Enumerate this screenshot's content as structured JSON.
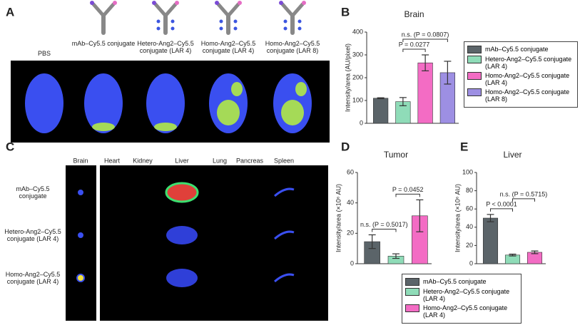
{
  "panel_letters": [
    "A",
    "B",
    "C",
    "D",
    "E"
  ],
  "panel_a": {
    "labels": [
      "PBS",
      "mAb–Cy5.5 conjugate",
      "Hetero-Ang2–Cy5.5 conjugate (LAR 4)",
      "Homo-Ang2–Cy5.5 conjugate (LAR 4)",
      "Homo-Ang2–Cy5.5 conjugate (LAR 8)"
    ]
  },
  "panel_c": {
    "columns": [
      "Brain",
      "Heart",
      "Kidney",
      "Liver",
      "Lung",
      "Pancreas",
      "Spleen"
    ],
    "rows": [
      "mAb–Cy5.5 conjugate",
      "Hetero-Ang2–Cy5.5 conjugate (LAR 4)",
      "Homo-Ang2–Cy5.5 conjugate (LAR 4)"
    ]
  },
  "chart_data": [
    {
      "type": "bar",
      "title": "Brain",
      "y_label": "Intensity/area (AU/pixel)",
      "ylim": [
        0,
        400
      ],
      "yticks": [
        0,
        100,
        200,
        300,
        400
      ],
      "series": [
        {
          "name": "mAb–Cy5.5 conjugate",
          "color": "#5b6469",
          "values": [
            110
          ],
          "errors": [
            2
          ]
        },
        {
          "name": "Hetero-Ang2–Cy5.5 conjugate (LAR 4)",
          "color": "#8fdcb8",
          "values": [
            95
          ],
          "errors": [
            18
          ]
        },
        {
          "name": "Homo-Ang2–Cy5.5 conjugate (LAR 4)",
          "color": "#f36cc4",
          "values": [
            265
          ],
          "errors": [
            35
          ]
        },
        {
          "name": "Homo-Ang2–Cy5.5 conjugate (LAR 8)",
          "color": "#9d8fe3",
          "values": [
            222
          ],
          "errors": [
            50
          ]
        }
      ],
      "annotations": [
        {
          "text": "P = 0.0277",
          "bars": [
            1,
            2
          ]
        },
        {
          "text": "n.s. (P = 0.0807)",
          "bars": [
            1,
            3
          ]
        }
      ]
    },
    {
      "type": "bar",
      "title": "Tumor",
      "y_label": "Intensity/area (×10⁶ AU)",
      "ylim": [
        0,
        60
      ],
      "yticks": [
        0,
        20,
        40,
        60
      ],
      "series": [
        {
          "name": "mAb–Cy5.5 conjugate",
          "color": "#5b6469",
          "values": [
            14.5
          ],
          "errors": [
            4.5
          ]
        },
        {
          "name": "Hetero-Ang2–Cy5.5 conjugate (LAR 4)",
          "color": "#8fdcb8",
          "values": [
            5
          ],
          "errors": [
            1.5
          ]
        },
        {
          "name": "Homo-Ang2–Cy5.5 conjugate (LAR 4)",
          "color": "#f36cc4",
          "values": [
            31.5
          ],
          "errors": [
            10.5
          ]
        }
      ],
      "annotations": [
        {
          "text": "n.s. (P = 0.5017)",
          "bars": [
            0,
            1
          ]
        },
        {
          "text": "P = 0.0452",
          "bars": [
            1,
            2
          ]
        }
      ]
    },
    {
      "type": "bar",
      "title": "Liver",
      "y_label": "Intensity/area (×10⁶ AU)",
      "ylim": [
        0,
        100
      ],
      "yticks": [
        0,
        20,
        40,
        60,
        80,
        100
      ],
      "series": [
        {
          "name": "mAb–Cy5.5 conjugate",
          "color": "#5b6469",
          "values": [
            50
          ],
          "errors": [
            4
          ]
        },
        {
          "name": "Hetero-Ang2–Cy5.5 conjugate (LAR 4)",
          "color": "#8fdcb8",
          "values": [
            9.5
          ],
          "errors": [
            1
          ]
        },
        {
          "name": "Homo-Ang2–Cy5.5 conjugate (LAR 4)",
          "color": "#f36cc4",
          "values": [
            12.5
          ],
          "errors": [
            1.5
          ]
        }
      ],
      "annotations": [
        {
          "text": "P < 0.0001",
          "bars": [
            0,
            1
          ]
        },
        {
          "text": "n.s. (P = 0.5715)",
          "bars": [
            1,
            2
          ]
        }
      ]
    }
  ]
}
